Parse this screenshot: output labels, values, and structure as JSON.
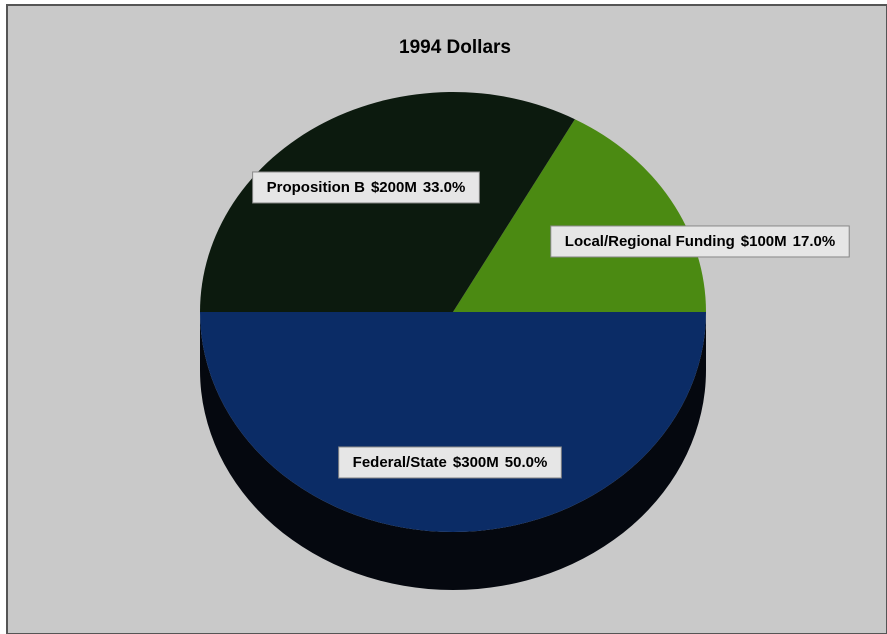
{
  "chart_data": {
    "type": "pie",
    "title": "1994 Dollars",
    "categories": [
      "Local/Regional Funding",
      "Proposition B",
      "Federal/State"
    ],
    "amounts": [
      100000000,
      200000000,
      300000000
    ],
    "amount_labels": [
      "$100M",
      "$200M",
      "$300M"
    ],
    "values": [
      17.0,
      33.0,
      50.0
    ],
    "value_labels": [
      "17.0%",
      "33.0%",
      "50.0%"
    ],
    "colors": [
      "#4b8a12",
      "#0c1a0e",
      "#0b2c66"
    ]
  }
}
